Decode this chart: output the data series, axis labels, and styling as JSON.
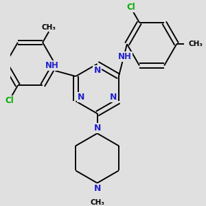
{
  "bg_color": "#e0e0e0",
  "bond_color": "#000000",
  "N_color": "#2222cc",
  "Cl_color": "#00aa00",
  "C_color": "#000000",
  "line_width": 1.4,
  "figsize": [
    3.0,
    3.0
  ],
  "dpi": 100,
  "xlim": [
    -3.5,
    3.5
  ],
  "ylim": [
    -4.0,
    3.5
  ]
}
